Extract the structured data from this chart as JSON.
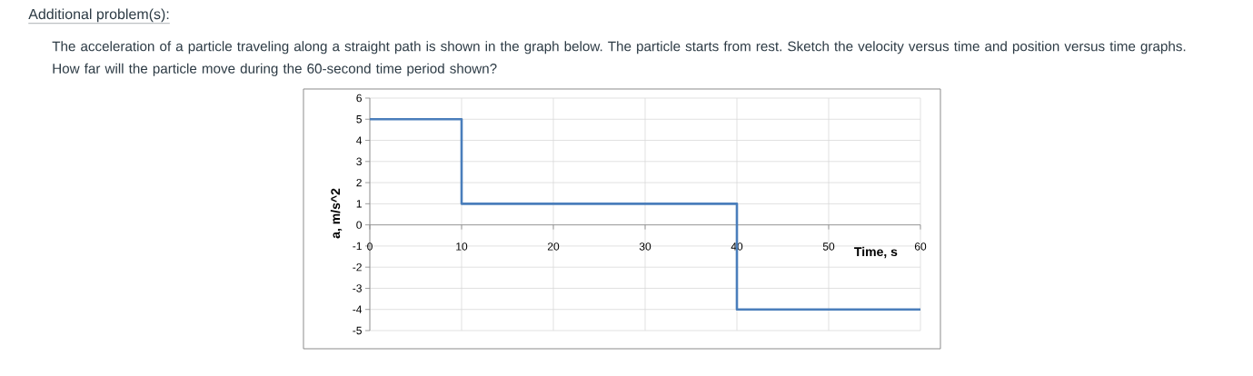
{
  "chart_data": {
    "type": "step",
    "title": "Additional problem(s):",
    "subtitle": "The acceleration of a particle traveling along a straight path is shown in the graph below. The particle starts from rest. Sketch the velocity versus time and position versus time graphs. How far will the particle move during the 60-second time period shown?",
    "xlabel": "Time, s",
    "ylabel": "a, m/s^2",
    "x": [
      0,
      10,
      40,
      60
    ],
    "series": [
      {
        "color": "#4a7ebb",
        "values": [
          5,
          1,
          -4,
          -4
        ]
      }
    ],
    "xlim": [
      0,
      60
    ],
    "ylim": [
      -5,
      6
    ],
    "xticks": [
      0,
      10,
      20,
      30,
      40,
      50,
      60
    ],
    "yticks": [
      -5,
      -4,
      -3,
      -2,
      -1,
      0,
      1,
      2,
      3,
      4,
      5,
      6
    ],
    "grid": true,
    "marker": "none",
    "line_style": "solid"
  }
}
